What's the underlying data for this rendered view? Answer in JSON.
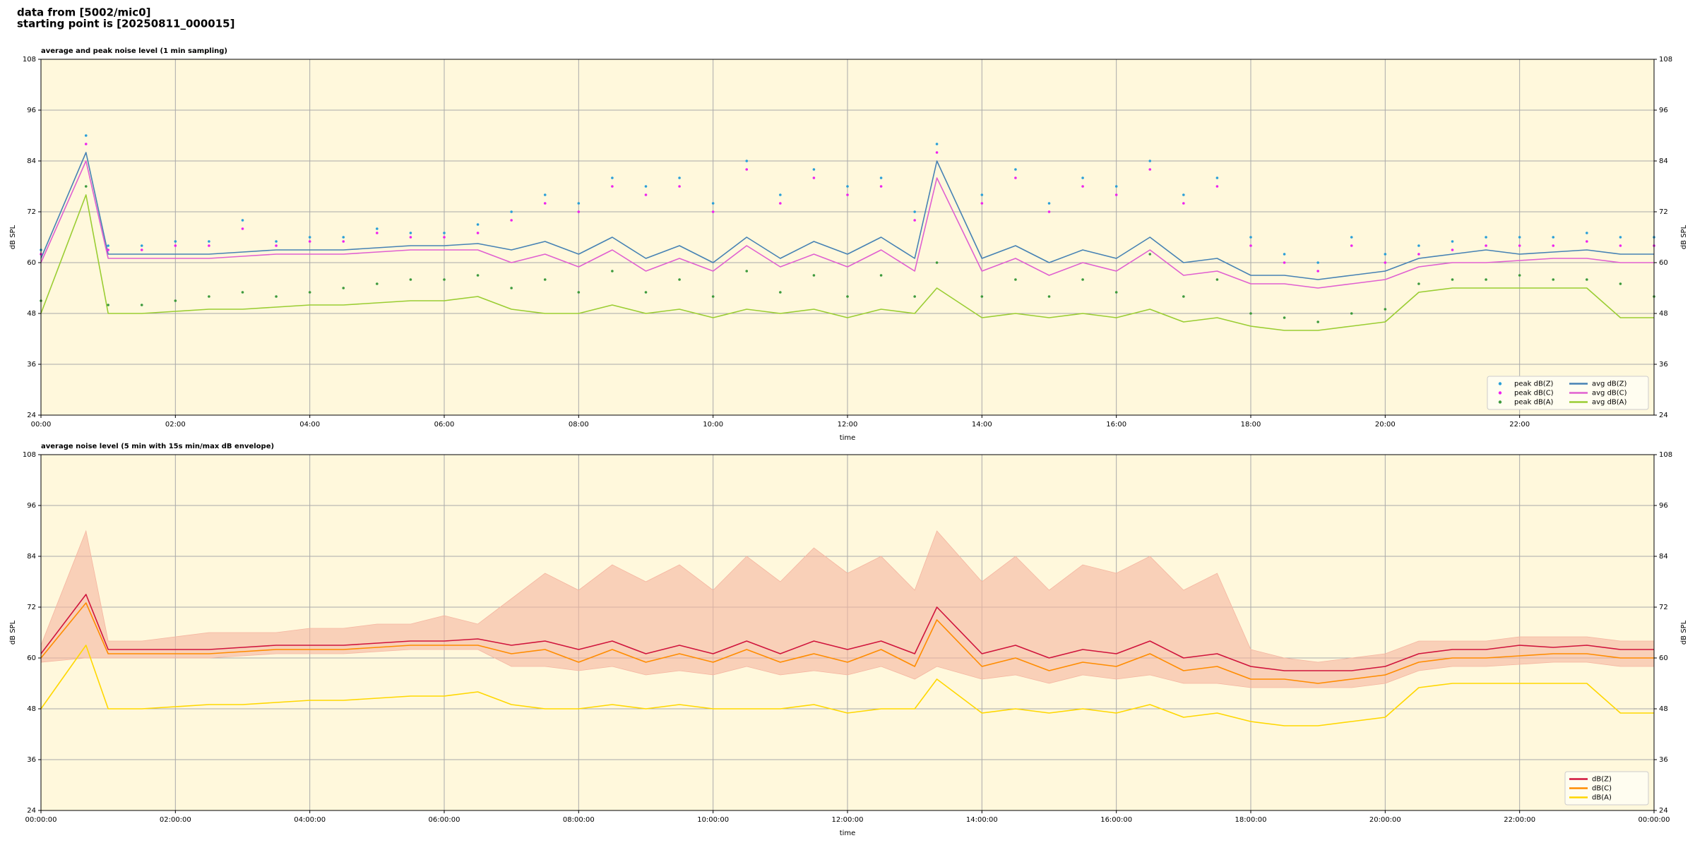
{
  "header": {
    "line1": "data from [5002/mic0]",
    "line2": "starting point is [20250811_000015]"
  },
  "chart_data": [
    {
      "type": "line",
      "title": "average and peak noise level (1 min sampling)",
      "xlabel": "time",
      "ylabel": "dB SPL",
      "x": [
        0,
        0.67,
        1,
        1.5,
        2,
        2.5,
        3,
        3.5,
        4,
        4.5,
        5,
        5.5,
        6,
        6.5,
        7,
        7.5,
        8,
        8.5,
        9,
        9.5,
        10,
        10.5,
        11,
        11.5,
        12,
        12.5,
        13,
        13.33,
        14,
        14.5,
        15,
        15.5,
        16,
        16.5,
        17,
        17.5,
        18,
        18.5,
        19,
        19.5,
        20,
        20.5,
        21,
        21.5,
        22,
        22.5,
        23,
        23.5,
        24
      ],
      "xlim": [
        0,
        24
      ],
      "xticks": [
        {
          "value": 0,
          "label": "00:00"
        },
        {
          "value": 2,
          "label": "02:00"
        },
        {
          "value": 4,
          "label": "04:00"
        },
        {
          "value": 6,
          "label": "06:00"
        },
        {
          "value": 8,
          "label": "08:00"
        },
        {
          "value": 10,
          "label": "10:00"
        },
        {
          "value": 12,
          "label": "12:00"
        },
        {
          "value": 14,
          "label": "14:00"
        },
        {
          "value": 16,
          "label": "16:00"
        },
        {
          "value": 18,
          "label": "18:00"
        },
        {
          "value": 20,
          "label": "20:00"
        },
        {
          "value": 22,
          "label": "22:00"
        }
      ],
      "ylim": [
        24,
        108
      ],
      "yticks": [
        24,
        36,
        48,
        60,
        72,
        84,
        96,
        108
      ],
      "grid": true,
      "legend": "lower right",
      "legend_columns": 2,
      "series": [
        {
          "name": "peak dB(Z)",
          "kind": "scatter",
          "color": "#2a9fd8",
          "values": [
            63,
            90,
            64,
            64,
            65,
            65,
            70,
            65,
            66,
            66,
            68,
            67,
            67,
            69,
            72,
            76,
            74,
            80,
            78,
            80,
            74,
            84,
            76,
            82,
            78,
            80,
            72,
            88,
            76,
            82,
            74,
            80,
            78,
            84,
            76,
            80,
            66,
            62,
            60,
            66,
            62,
            64,
            65,
            66,
            66,
            66,
            67,
            66,
            66
          ]
        },
        {
          "name": "peak dB(C)",
          "kind": "scatter",
          "color": "#ee22ee",
          "values": [
            62,
            88,
            63,
            63,
            64,
            64,
            68,
            64,
            65,
            65,
            67,
            66,
            66,
            67,
            70,
            74,
            72,
            78,
            76,
            78,
            72,
            82,
            74,
            80,
            76,
            78,
            70,
            86,
            74,
            80,
            72,
            78,
            76,
            82,
            74,
            78,
            64,
            60,
            58,
            64,
            60,
            62,
            63,
            64,
            64,
            64,
            65,
            64,
            64
          ]
        },
        {
          "name": "peak dB(A)",
          "kind": "scatter",
          "color": "#3d9a3d",
          "values": [
            51,
            78,
            50,
            50,
            51,
            52,
            53,
            52,
            53,
            54,
            55,
            56,
            56,
            57,
            54,
            56,
            53,
            58,
            53,
            56,
            52,
            58,
            53,
            57,
            52,
            57,
            52,
            60,
            52,
            56,
            52,
            56,
            53,
            62,
            52,
            56,
            48,
            47,
            46,
            48,
            49,
            55,
            56,
            56,
            57,
            56,
            56,
            55,
            52
          ]
        },
        {
          "name": "avg dB(Z)",
          "kind": "line",
          "color": "#4682b4",
          "values": [
            61,
            86,
            62,
            62,
            62,
            62,
            62.5,
            63,
            63,
            63,
            63.5,
            64,
            64,
            64.5,
            63,
            65,
            62,
            66,
            61,
            64,
            60,
            66,
            61,
            65,
            62,
            66,
            61,
            84,
            61,
            64,
            60,
            63,
            61,
            66,
            60,
            61,
            57,
            57,
            56,
            57,
            58,
            61,
            62,
            63,
            62,
            62.5,
            63,
            62,
            62
          ]
        },
        {
          "name": "avg dB(C)",
          "kind": "line",
          "color": "#e060d0",
          "values": [
            60,
            84,
            61,
            61,
            61,
            61,
            61.5,
            62,
            62,
            62,
            62.5,
            63,
            63,
            63,
            60,
            62,
            59,
            63,
            58,
            61,
            58,
            64,
            59,
            62,
            59,
            63,
            58,
            80,
            58,
            61,
            57,
            60,
            58,
            63,
            57,
            58,
            55,
            55,
            54,
            55,
            56,
            59,
            60,
            60,
            60.5,
            61,
            61,
            60,
            60
          ]
        },
        {
          "name": "avg dB(A)",
          "kind": "line",
          "color": "#9acd32",
          "values": [
            48,
            76,
            48,
            48,
            48.5,
            49,
            49,
            49.5,
            50,
            50,
            50.5,
            51,
            51,
            52,
            49,
            48,
            48,
            50,
            48,
            49,
            47,
            49,
            48,
            49,
            47,
            49,
            48,
            54,
            47,
            48,
            47,
            48,
            47,
            49,
            46,
            47,
            45,
            44,
            44,
            45,
            46,
            53,
            54,
            54,
            54,
            54,
            54,
            47,
            47
          ]
        }
      ]
    },
    {
      "type": "line",
      "title": "average noise level (5 min with 15s min/max dB envelope)",
      "xlabel": "time",
      "ylabel": "dB SPL",
      "x": [
        0,
        0.67,
        1,
        1.5,
        2,
        2.5,
        3,
        3.5,
        4,
        4.5,
        5,
        5.5,
        6,
        6.5,
        7,
        7.5,
        8,
        8.5,
        9,
        9.5,
        10,
        10.5,
        11,
        11.5,
        12,
        12.5,
        13,
        13.33,
        14,
        14.5,
        15,
        15.5,
        16,
        16.5,
        17,
        17.5,
        18,
        18.5,
        19,
        19.5,
        20,
        20.5,
        21,
        21.5,
        22,
        22.5,
        23,
        23.5,
        24
      ],
      "xlim": [
        0,
        24
      ],
      "xticks": [
        {
          "value": 0,
          "label": "00:00:00"
        },
        {
          "value": 2,
          "label": "02:00:00"
        },
        {
          "value": 4,
          "label": "04:00:00"
        },
        {
          "value": 6,
          "label": "06:00:00"
        },
        {
          "value": 8,
          "label": "08:00:00"
        },
        {
          "value": 10,
          "label": "10:00:00"
        },
        {
          "value": 12,
          "label": "12:00:00"
        },
        {
          "value": 14,
          "label": "14:00:00"
        },
        {
          "value": 16,
          "label": "16:00:00"
        },
        {
          "value": 18,
          "label": "18:00:00"
        },
        {
          "value": 20,
          "label": "20:00:00"
        },
        {
          "value": 22,
          "label": "22:00:00"
        },
        {
          "value": 24,
          "label": "00:00:00"
        }
      ],
      "ylim": [
        24,
        108
      ],
      "yticks": [
        24,
        36,
        48,
        60,
        72,
        84,
        96,
        108
      ],
      "grid": true,
      "legend": "lower right",
      "legend_columns": 1,
      "envelope": {
        "color": "#f5b5a0",
        "max": [
          63,
          90,
          64,
          64,
          65,
          66,
          66,
          66,
          67,
          67,
          68,
          68,
          70,
          68,
          74,
          80,
          76,
          82,
          78,
          82,
          76,
          84,
          78,
          86,
          80,
          84,
          76,
          90,
          78,
          84,
          76,
          82,
          80,
          84,
          76,
          80,
          62,
          60,
          59,
          60,
          61,
          64,
          64,
          64,
          65,
          65,
          65,
          64,
          64
        ],
        "min": [
          59,
          60,
          60,
          60,
          60,
          60,
          60.5,
          61,
          61,
          61,
          61.5,
          62,
          62,
          62,
          58,
          58,
          57,
          58,
          56,
          57,
          56,
          58,
          56,
          57,
          56,
          58,
          55,
          58,
          55,
          56,
          54,
          56,
          55,
          56,
          54,
          54,
          53,
          53,
          53,
          53,
          54,
          57,
          58,
          58,
          58.5,
          59,
          59,
          58,
          58
        ]
      },
      "series": [
        {
          "name": "dB(Z)",
          "kind": "line",
          "color": "#d0143c",
          "values": [
            61,
            75,
            62,
            62,
            62,
            62,
            62.5,
            63,
            63,
            63,
            63.5,
            64,
            64,
            64.5,
            63,
            64,
            62,
            64,
            61,
            63,
            61,
            64,
            61,
            64,
            62,
            64,
            61,
            72,
            61,
            63,
            60,
            62,
            61,
            64,
            60,
            61,
            58,
            57,
            57,
            57,
            58,
            61,
            62,
            62,
            63,
            62.5,
            63,
            62,
            62
          ]
        },
        {
          "name": "dB(C)",
          "kind": "line",
          "color": "#ff8c00",
          "values": [
            60,
            73,
            61,
            61,
            61,
            61,
            61.5,
            62,
            62,
            62,
            62.5,
            63,
            63,
            63,
            61,
            62,
            59,
            62,
            59,
            61,
            59,
            62,
            59,
            61,
            59,
            62,
            58,
            69,
            58,
            60,
            57,
            59,
            58,
            61,
            57,
            58,
            55,
            55,
            54,
            55,
            56,
            59,
            60,
            60,
            60.5,
            61,
            61,
            60,
            60
          ]
        },
        {
          "name": "dB(A)",
          "kind": "line",
          "color": "#ffd700",
          "values": [
            48,
            63,
            48,
            48,
            48.5,
            49,
            49,
            49.5,
            50,
            50,
            50.5,
            51,
            51,
            52,
            49,
            48,
            48,
            49,
            48,
            49,
            48,
            48,
            48,
            49,
            47,
            48,
            48,
            55,
            47,
            48,
            47,
            48,
            47,
            49,
            46,
            47,
            45,
            44,
            44,
            45,
            46,
            53,
            54,
            54,
            54,
            54,
            54,
            47,
            47
          ]
        }
      ]
    }
  ]
}
